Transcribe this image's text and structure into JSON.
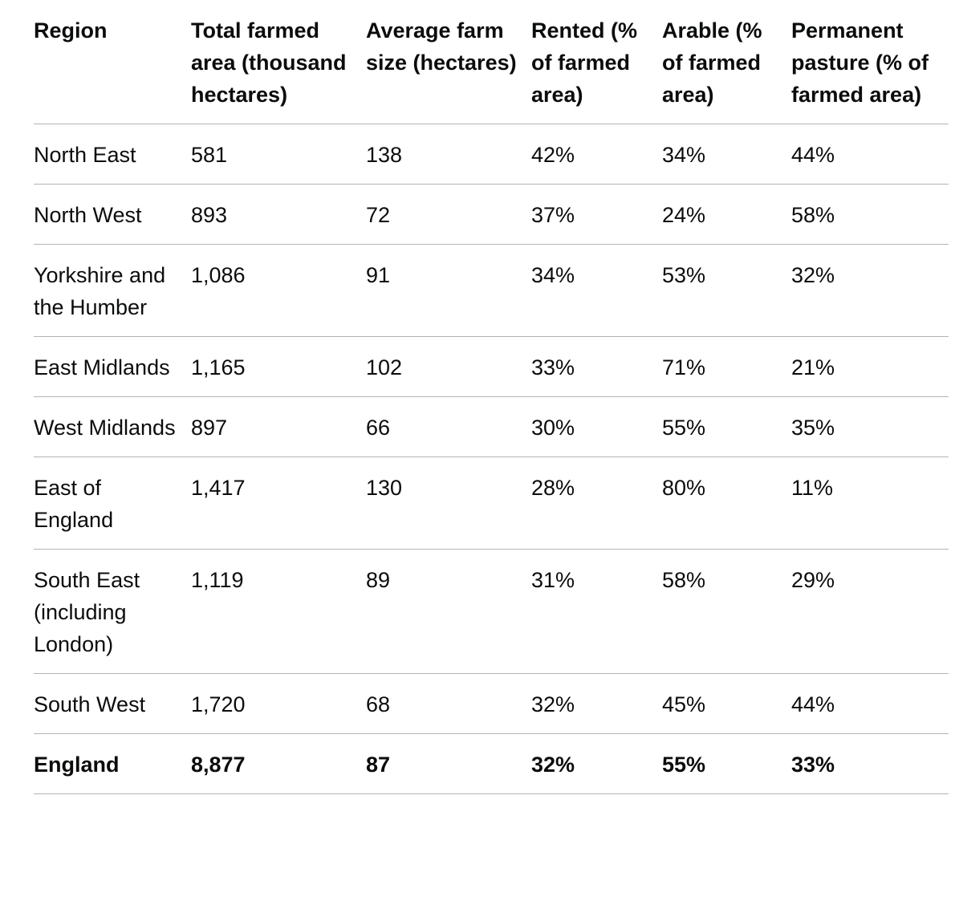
{
  "table": {
    "header": [
      "Region",
      "Total farmed area (thousand hectares)",
      "Average farm size (hectares)",
      "Rented (% of farmed area)",
      "Arable (% of farmed area)",
      "Permanent pasture (% of farmed area)"
    ],
    "rows": [
      [
        "North East",
        "581",
        "138",
        "42%",
        "34%",
        "44%"
      ],
      [
        "North West",
        "893",
        "72",
        "37%",
        "24%",
        "58%"
      ],
      [
        "Yorkshire and the Humber",
        "1,086",
        "91",
        "34%",
        "53%",
        "32%"
      ],
      [
        "East Midlands",
        "1,165",
        "102",
        "33%",
        "71%",
        "21%"
      ],
      [
        "West Midlands",
        "897",
        "66",
        "30%",
        "55%",
        "35%"
      ],
      [
        "East of England",
        "1,417",
        "130",
        "28%",
        "80%",
        "11%"
      ],
      [
        "South East (including London)",
        "1,119",
        "89",
        "31%",
        "58%",
        "29%"
      ],
      [
        "South West",
        "1,720",
        "68",
        "32%",
        "45%",
        "44%"
      ],
      [
        "England",
        "8,877",
        "87",
        "32%",
        "55%",
        "33%"
      ]
    ]
  }
}
